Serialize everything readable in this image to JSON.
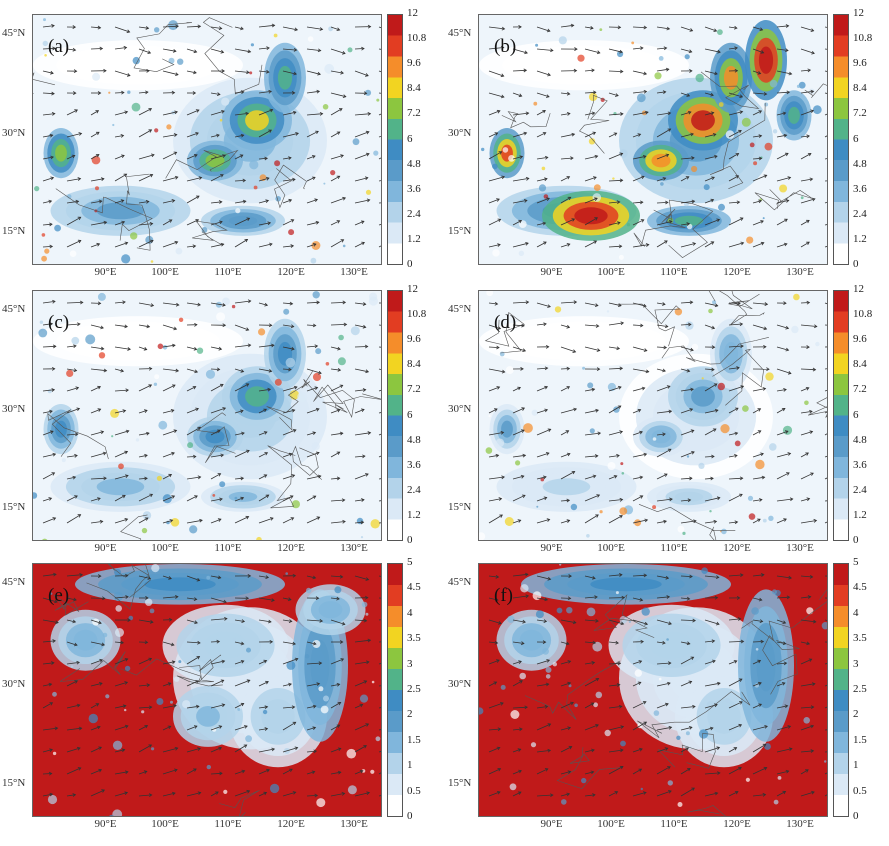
{
  "chart_data": [
    {
      "panel": "a",
      "type": "heatmap",
      "label": "(a)",
      "colorbar": {
        "ticks": [
          "0",
          "1.2",
          "2.4",
          "3.6",
          "4.8",
          "6",
          "7.2",
          "8.4",
          "9.6",
          "10.8",
          "12"
        ],
        "range": [
          0,
          12
        ]
      },
      "lat_ticks": [
        "15°N",
        "30°N",
        "45°N"
      ],
      "lon_ticks": [
        "90°E",
        "100°E",
        "110°E",
        "120°E",
        "130°E"
      ],
      "style": "moderate"
    },
    {
      "panel": "b",
      "type": "heatmap",
      "label": "(b)",
      "colorbar": {
        "ticks": [
          "0",
          "1.2",
          "2.4",
          "3.6",
          "4.8",
          "6",
          "7.2",
          "8.4",
          "9.6",
          "10.8",
          "12"
        ],
        "range": [
          0,
          12
        ]
      },
      "lat_ticks": [
        "15°N",
        "30°N",
        "45°N"
      ],
      "lon_ticks": [
        "90°E",
        "100°E",
        "110°E",
        "120°E",
        "130°E"
      ],
      "style": "high"
    },
    {
      "panel": "c",
      "type": "heatmap",
      "label": "(c)",
      "colorbar": {
        "ticks": [
          "0",
          "1.2",
          "2.4",
          "3.6",
          "4.8",
          "6",
          "7.2",
          "8.4",
          "9.6",
          "10.8",
          "12"
        ],
        "range": [
          0,
          12
        ]
      },
      "lat_ticks": [
        "15°N",
        "30°N",
        "45°N"
      ],
      "lon_ticks": [
        "90°E",
        "100°E",
        "110°E",
        "120°E",
        "130°E"
      ],
      "style": "low"
    },
    {
      "panel": "d",
      "type": "heatmap",
      "label": "(d)",
      "colorbar": {
        "ticks": [
          "0",
          "1.2",
          "2.4",
          "3.6",
          "4.8",
          "6",
          "7.2",
          "8.4",
          "9.6",
          "10.8",
          "12"
        ],
        "range": [
          0,
          12
        ]
      },
      "lat_ticks": [
        "15°N",
        "30°N",
        "45°N"
      ],
      "lon_ticks": [
        "90°E",
        "100°E",
        "110°E",
        "120°E",
        "130°E"
      ],
      "style": "verylow"
    },
    {
      "panel": "e",
      "type": "heatmap",
      "label": "(e)",
      "colorbar": {
        "ticks": [
          "0",
          "0.5",
          "1",
          "1.5",
          "2",
          "2.5",
          "3",
          "3.5",
          "4",
          "4.5",
          "5"
        ],
        "range": [
          0,
          5
        ]
      },
      "lat_ticks": [
        "15°N",
        "30°N",
        "45°N"
      ],
      "lon_ticks": [
        "90°E",
        "100°E",
        "110°E",
        "120°E",
        "130°E"
      ],
      "style": "ratio"
    },
    {
      "panel": "f",
      "type": "heatmap",
      "label": "(f)",
      "colorbar": {
        "ticks": [
          "0",
          "0.5",
          "1",
          "1.5",
          "2",
          "2.5",
          "3",
          "3.5",
          "4",
          "4.5",
          "5"
        ],
        "range": [
          0,
          5
        ]
      },
      "lat_ticks": [
        "15°N",
        "30°N",
        "45°N"
      ],
      "lon_ticks": [
        "90°E",
        "100°E",
        "110°E",
        "120°E",
        "130°E"
      ],
      "style": "ratio-high"
    }
  ],
  "colors": {
    "scale": [
      "#ffffff",
      "#dbe9f6",
      "#b3d3ea",
      "#80b6dc",
      "#5a9bc9",
      "#3f8cc3",
      "#52b389",
      "#8cc63f",
      "#f2d421",
      "#f58d2a",
      "#e23d22",
      "#c01a1a"
    ]
  }
}
